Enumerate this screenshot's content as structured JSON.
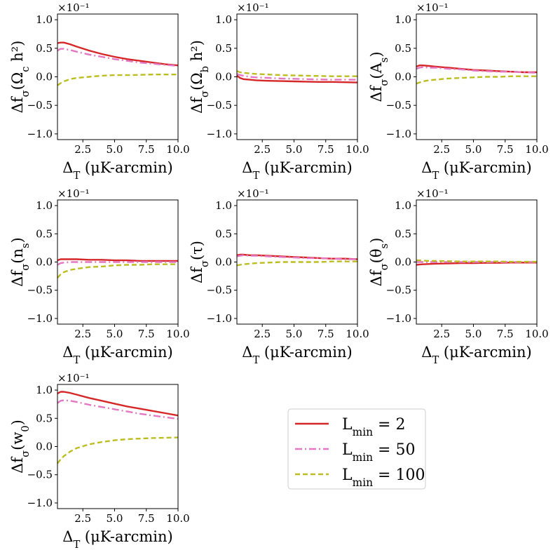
{
  "chart_data": [
    {
      "type": "line",
      "ylabel": "Δf_σ(Ω_c h²)",
      "xlabel": "Δ_T (μK-arcmin)",
      "y_multiplier": "×10⁻¹",
      "xlim": [
        0.5,
        10.0
      ],
      "ylim": [
        -1.1,
        1.1
      ],
      "xticks": [
        "2.5",
        "5.0",
        "7.5",
        "10.0"
      ],
      "yticks": [
        "1.0",
        "0.5",
        "0.0",
        "−0.5",
        "−1.0"
      ],
      "series": [
        {
          "name": "L_min = 2",
          "x": [
            0.5,
            0.75,
            1.0,
            1.5,
            2.0,
            3.0,
            4.0,
            5.0,
            6.0,
            7.0,
            8.0,
            9.0,
            10.0
          ],
          "y": [
            0.59,
            0.6,
            0.6,
            0.57,
            0.53,
            0.46,
            0.4,
            0.35,
            0.31,
            0.28,
            0.25,
            0.22,
            0.2
          ]
        },
        {
          "name": "L_min = 50",
          "x": [
            0.5,
            0.75,
            1.0,
            1.5,
            2.0,
            3.0,
            4.0,
            5.0,
            6.0,
            7.0,
            8.0,
            9.0,
            10.0
          ],
          "y": [
            0.46,
            0.49,
            0.49,
            0.47,
            0.44,
            0.39,
            0.35,
            0.31,
            0.28,
            0.25,
            0.23,
            0.21,
            0.19
          ]
        },
        {
          "name": "L_min = 100",
          "x": [
            0.5,
            0.75,
            1.0,
            1.5,
            2.0,
            3.0,
            4.0,
            5.0,
            6.0,
            7.0,
            8.0,
            9.0,
            10.0
          ],
          "y": [
            -0.15,
            -0.11,
            -0.08,
            -0.04,
            -0.02,
            0.0,
            0.02,
            0.03,
            0.03,
            0.035,
            0.04,
            0.04,
            0.04
          ]
        }
      ]
    },
    {
      "type": "line",
      "ylabel": "Δf_σ(Ω_b h²)",
      "xlabel": "Δ_T (μK-arcmin)",
      "y_multiplier": "×10⁻¹",
      "xlim": [
        0.5,
        10.0
      ],
      "ylim": [
        -1.1,
        1.1
      ],
      "xticks": [
        "2.5",
        "5.0",
        "7.5",
        "10.0"
      ],
      "yticks": [
        "1.0",
        "0.5",
        "0.0",
        "−0.5",
        "−1.0"
      ],
      "series": [
        {
          "name": "L_min = 2",
          "x": [
            0.5,
            0.75,
            1.0,
            1.5,
            2.0,
            3.0,
            4.0,
            5.0,
            6.0,
            7.0,
            8.0,
            9.0,
            10.0
          ],
          "y": [
            0.02,
            -0.02,
            -0.04,
            -0.05,
            -0.06,
            -0.07,
            -0.075,
            -0.08,
            -0.085,
            -0.09,
            -0.09,
            -0.095,
            -0.1
          ]
        },
        {
          "name": "L_min = 50",
          "x": [
            0.5,
            0.75,
            1.0,
            1.5,
            2.0,
            3.0,
            4.0,
            5.0,
            6.0,
            7.0,
            8.0,
            9.0,
            10.0
          ],
          "y": [
            0.05,
            0.03,
            0.02,
            0.0,
            -0.01,
            -0.02,
            -0.03,
            -0.035,
            -0.04,
            -0.045,
            -0.05,
            -0.05,
            -0.05
          ]
        },
        {
          "name": "L_min = 100",
          "x": [
            0.5,
            0.75,
            1.0,
            1.5,
            2.0,
            3.0,
            4.0,
            5.0,
            6.0,
            7.0,
            8.0,
            9.0,
            10.0
          ],
          "y": [
            0.1,
            0.08,
            0.07,
            0.06,
            0.05,
            0.04,
            0.03,
            0.025,
            0.02,
            0.015,
            0.01,
            0.01,
            0.01
          ]
        }
      ]
    },
    {
      "type": "line",
      "ylabel": "Δf_σ(A_s)",
      "xlabel": "Δ_T (μK-arcmin)",
      "y_multiplier": "×10⁻¹",
      "xlim": [
        0.5,
        10.0
      ],
      "ylim": [
        -1.1,
        1.1
      ],
      "xticks": [
        "2.5",
        "5.0",
        "7.5",
        "10.0"
      ],
      "yticks": [
        "1.0",
        "0.5",
        "0.0",
        "−0.5",
        "−1.0"
      ],
      "series": [
        {
          "name": "L_min = 2",
          "x": [
            0.5,
            0.75,
            1.0,
            1.5,
            2.0,
            3.0,
            4.0,
            5.0,
            6.0,
            7.0,
            8.0,
            9.0,
            10.0
          ],
          "y": [
            0.18,
            0.2,
            0.2,
            0.19,
            0.18,
            0.16,
            0.14,
            0.12,
            0.11,
            0.1,
            0.09,
            0.08,
            0.08
          ]
        },
        {
          "name": "L_min = 50",
          "x": [
            0.5,
            0.75,
            1.0,
            1.5,
            2.0,
            3.0,
            4.0,
            5.0,
            6.0,
            7.0,
            8.0,
            9.0,
            10.0
          ],
          "y": [
            0.14,
            0.16,
            0.17,
            0.16,
            0.16,
            0.14,
            0.13,
            0.11,
            0.1,
            0.09,
            0.09,
            0.08,
            0.07
          ]
        },
        {
          "name": "L_min = 100",
          "x": [
            0.5,
            0.75,
            1.0,
            1.5,
            2.0,
            3.0,
            4.0,
            5.0,
            6.0,
            7.0,
            8.0,
            9.0,
            10.0
          ],
          "y": [
            -0.12,
            -0.1,
            -0.08,
            -0.06,
            -0.05,
            -0.03,
            -0.02,
            -0.01,
            0.0,
            0.0,
            0.01,
            0.01,
            0.01
          ]
        }
      ]
    },
    {
      "type": "line",
      "ylabel": "Δf_σ(n_s)",
      "xlabel": "Δ_T (μK-arcmin)",
      "y_multiplier": "×10⁻¹",
      "xlim": [
        0.5,
        10.0
      ],
      "ylim": [
        -1.1,
        1.1
      ],
      "xticks": [
        "2.5",
        "5.0",
        "7.5",
        "10.0"
      ],
      "yticks": [
        "1.0",
        "0.5",
        "0.0",
        "−0.5",
        "−1.0"
      ],
      "series": [
        {
          "name": "L_min = 2",
          "x": [
            0.5,
            0.75,
            1.0,
            1.5,
            2.0,
            3.0,
            4.0,
            5.0,
            6.0,
            7.0,
            8.0,
            9.0,
            10.0
          ],
          "y": [
            0.03,
            0.05,
            0.05,
            0.05,
            0.05,
            0.04,
            0.04,
            0.03,
            0.03,
            0.02,
            0.02,
            0.02,
            0.02
          ]
        },
        {
          "name": "L_min = 50",
          "x": [
            0.5,
            0.75,
            1.0,
            1.5,
            2.0,
            3.0,
            4.0,
            5.0,
            6.0,
            7.0,
            8.0,
            9.0,
            10.0
          ],
          "y": [
            -0.05,
            -0.02,
            -0.01,
            0.0,
            0.0,
            0.0,
            0.0,
            0.0,
            0.0,
            0.0,
            0.0,
            0.0,
            0.0
          ]
        },
        {
          "name": "L_min = 100",
          "x": [
            0.5,
            0.75,
            1.0,
            1.5,
            2.0,
            3.0,
            4.0,
            5.0,
            6.0,
            7.0,
            8.0,
            9.0,
            10.0
          ],
          "y": [
            -0.28,
            -0.22,
            -0.18,
            -0.14,
            -0.12,
            -0.09,
            -0.08,
            -0.06,
            -0.05,
            -0.05,
            -0.04,
            -0.04,
            -0.04
          ]
        }
      ]
    },
    {
      "type": "line",
      "ylabel": "Δf_σ(τ)",
      "xlabel": "Δ_T (μK-arcmin)",
      "y_multiplier": "×10⁻¹",
      "xlim": [
        0.5,
        10.0
      ],
      "ylim": [
        -1.1,
        1.1
      ],
      "xticks": [
        "2.5",
        "5.0",
        "7.5",
        "10.0"
      ],
      "yticks": [
        "1.0",
        "0.5",
        "0.0",
        "−0.5",
        "−1.0"
      ],
      "series": [
        {
          "name": "L_min = 2",
          "x": [
            0.5,
            0.75,
            1.0,
            1.5,
            2.0,
            3.0,
            4.0,
            5.0,
            6.0,
            7.0,
            8.0,
            9.0,
            10.0
          ],
          "y": [
            0.12,
            0.13,
            0.13,
            0.12,
            0.12,
            0.11,
            0.1,
            0.09,
            0.08,
            0.07,
            0.06,
            0.06,
            0.05
          ]
        },
        {
          "name": "L_min = 50",
          "x": [
            0.5,
            0.75,
            1.0,
            1.5,
            2.0,
            3.0,
            4.0,
            5.0,
            6.0,
            7.0,
            8.0,
            9.0,
            10.0
          ],
          "y": [
            0.1,
            0.11,
            0.12,
            0.11,
            0.11,
            0.1,
            0.09,
            0.08,
            0.07,
            0.07,
            0.06,
            0.05,
            0.05
          ]
        },
        {
          "name": "L_min = 100",
          "x": [
            0.5,
            0.75,
            1.0,
            1.5,
            2.0,
            3.0,
            4.0,
            5.0,
            6.0,
            7.0,
            8.0,
            9.0,
            10.0
          ],
          "y": [
            -0.06,
            -0.05,
            -0.04,
            -0.03,
            -0.02,
            -0.01,
            0.0,
            0.0,
            0.0,
            0.0,
            0.01,
            0.01,
            0.01
          ]
        }
      ]
    },
    {
      "type": "line",
      "ylabel": "Δf_σ(θ_s)",
      "xlabel": "Δ_T (μK-arcmin)",
      "y_multiplier": "×10⁻¹",
      "xlim": [
        0.5,
        10.0
      ],
      "ylim": [
        -1.1,
        1.1
      ],
      "xticks": [
        "2.5",
        "5.0",
        "7.5",
        "10.0"
      ],
      "yticks": [
        "1.0",
        "0.5",
        "0.0",
        "−0.5",
        "−1.0"
      ],
      "series": [
        {
          "name": "L_min = 2",
          "x": [
            0.5,
            0.75,
            1.0,
            1.5,
            2.0,
            3.0,
            4.0,
            5.0,
            6.0,
            7.0,
            8.0,
            9.0,
            10.0
          ],
          "y": [
            -0.05,
            -0.045,
            -0.04,
            -0.035,
            -0.03,
            -0.025,
            -0.02,
            -0.02,
            -0.015,
            -0.015,
            -0.01,
            -0.01,
            -0.01
          ]
        },
        {
          "name": "L_min = 50",
          "x": [
            0.5,
            0.75,
            1.0,
            1.5,
            2.0,
            3.0,
            4.0,
            5.0,
            6.0,
            7.0,
            8.0,
            9.0,
            10.0
          ],
          "y": [
            0.0,
            0.0,
            0.0,
            0.0,
            0.0,
            0.0,
            0.0,
            0.0,
            0.0,
            0.0,
            0.0,
            0.0,
            0.0
          ]
        },
        {
          "name": "L_min = 100",
          "x": [
            0.5,
            0.75,
            1.0,
            1.5,
            2.0,
            3.0,
            4.0,
            5.0,
            6.0,
            7.0,
            8.0,
            9.0,
            10.0
          ],
          "y": [
            0.03,
            0.03,
            0.025,
            0.02,
            0.02,
            0.015,
            0.01,
            0.01,
            0.01,
            0.01,
            0.005,
            0.005,
            0.005
          ]
        }
      ]
    },
    {
      "type": "line",
      "ylabel": "Δf_σ(w_0)",
      "xlabel": "Δ_T (μK-arcmin)",
      "y_multiplier": "×10⁻¹",
      "xlim": [
        0.5,
        10.0
      ],
      "ylim": [
        -1.1,
        1.1
      ],
      "xticks": [
        "2.5",
        "5.0",
        "7.5",
        "10.0"
      ],
      "yticks": [
        "1.0",
        "0.5",
        "0.0",
        "−0.5",
        "−1.0"
      ],
      "series": [
        {
          "name": "L_min = 2",
          "x": [
            0.5,
            0.75,
            1.0,
            1.5,
            2.0,
            3.0,
            4.0,
            5.0,
            6.0,
            7.0,
            8.0,
            9.0,
            10.0
          ],
          "y": [
            0.94,
            0.97,
            0.97,
            0.95,
            0.92,
            0.86,
            0.81,
            0.76,
            0.71,
            0.67,
            0.63,
            0.59,
            0.55
          ]
        },
        {
          "name": "L_min = 50",
          "x": [
            0.5,
            0.75,
            1.0,
            1.5,
            2.0,
            3.0,
            4.0,
            5.0,
            6.0,
            7.0,
            8.0,
            9.0,
            10.0
          ],
          "y": [
            0.77,
            0.81,
            0.82,
            0.81,
            0.79,
            0.74,
            0.7,
            0.66,
            0.62,
            0.58,
            0.55,
            0.52,
            0.49
          ]
        },
        {
          "name": "L_min = 100",
          "x": [
            0.5,
            0.75,
            1.0,
            1.5,
            2.0,
            3.0,
            4.0,
            5.0,
            6.0,
            7.0,
            8.0,
            9.0,
            10.0
          ],
          "y": [
            -0.3,
            -0.23,
            -0.17,
            -0.09,
            -0.03,
            0.04,
            0.08,
            0.11,
            0.13,
            0.14,
            0.15,
            0.155,
            0.16
          ]
        }
      ]
    }
  ],
  "legend": {
    "placement": "bottom-right",
    "entries": [
      {
        "label": "L_min = 2",
        "color": "#d62728",
        "dash": "solid"
      },
      {
        "label": "L_min = 50",
        "color": "#e377c2",
        "dash": "dashdot"
      },
      {
        "label": "L_min = 100",
        "color": "#bcbd22",
        "dash": "dashed"
      }
    ]
  },
  "colors": {
    "L2": "#d62728",
    "L50": "#e377c2",
    "L100": "#bcbd22"
  }
}
